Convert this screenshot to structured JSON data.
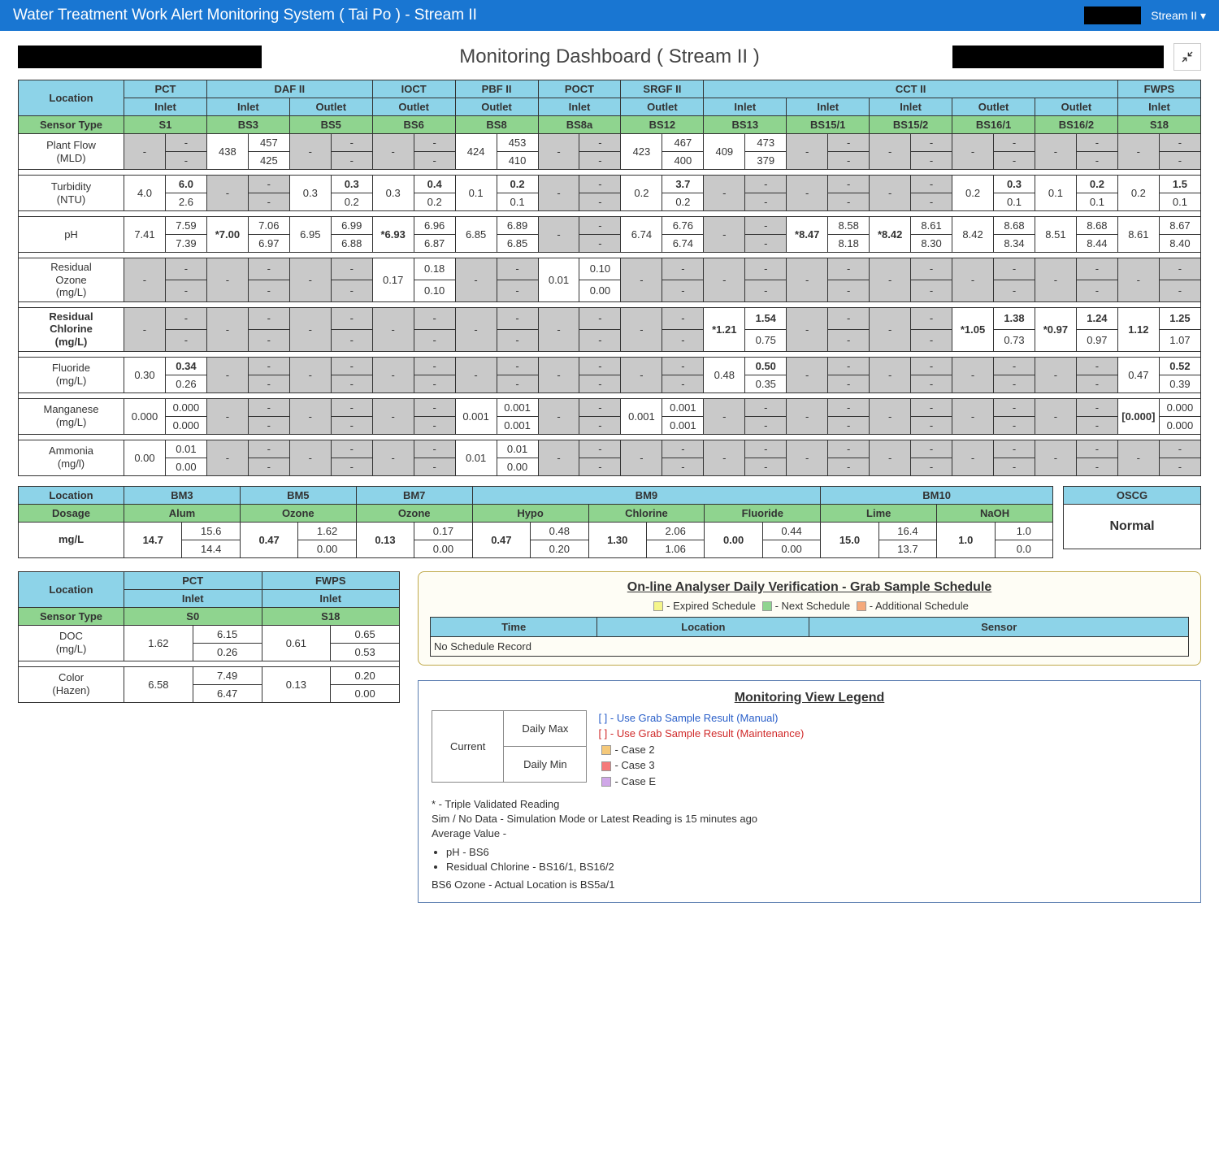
{
  "colors": {
    "header_bg": "#1976d2",
    "blue_cell": "#8dd3e8",
    "green_cell": "#8fd48f",
    "gray_cell": "#c9c9c9",
    "expired": "#f5f58a",
    "next": "#8fd48f",
    "additional": "#f5a97a",
    "case2": "#f5c97a",
    "case3": "#f57a7a",
    "caseE": "#d0a7e8"
  },
  "header": {
    "title": "Water Treatment Work Alert Monitoring System ( Tai Po ) - Stream II",
    "stream_dropdown": "Stream II ▾"
  },
  "dashboard_title": "Monitoring Dashboard ( Stream II )",
  "main": {
    "location_label": "Location",
    "sensor_type_label": "Sensor Type",
    "groups": [
      "PCT",
      "DAF II",
      "IOCT",
      "PBF II",
      "POCT",
      "SRGF II",
      "CCT II",
      "FWPS"
    ],
    "group_spans": [
      1,
      2,
      1,
      1,
      1,
      1,
      5,
      1
    ],
    "flows": [
      "Inlet",
      "Inlet",
      "Outlet",
      "Outlet",
      "Outlet",
      "Inlet",
      "Outlet",
      "Inlet",
      "Inlet",
      "Inlet",
      "Outlet",
      "Outlet",
      "Inlet"
    ],
    "sensors": [
      "S1",
      "BS3",
      "BS5",
      "BS6",
      "BS8",
      "BS8a",
      "BS12",
      "BS13",
      "BS15/1",
      "BS15/2",
      "BS16/1",
      "BS16/2",
      "S18"
    ],
    "rows": [
      {
        "label": "Plant Flow\n(MLD)",
        "bold": false,
        "cells": [
          {
            "cur": "-",
            "max": "-",
            "min": "-",
            "g": true
          },
          {
            "cur": "438",
            "max": "457",
            "min": "425"
          },
          {
            "cur": "-",
            "max": "-",
            "min": "-",
            "g": true
          },
          {
            "cur": "-",
            "max": "-",
            "min": "-",
            "g": true
          },
          {
            "cur": "424",
            "max": "453",
            "min": "410"
          },
          {
            "cur": "-",
            "max": "-",
            "min": "-",
            "g": true
          },
          {
            "cur": "423",
            "max": "467",
            "min": "400"
          },
          {
            "cur": "409",
            "max": "473",
            "min": "379"
          },
          {
            "cur": "-",
            "max": "-",
            "min": "-",
            "g": true
          },
          {
            "cur": "-",
            "max": "-",
            "min": "-",
            "g": true
          },
          {
            "cur": "-",
            "max": "-",
            "min": "-",
            "g": true
          },
          {
            "cur": "-",
            "max": "-",
            "min": "-",
            "g": true
          },
          {
            "cur": "-",
            "max": "-",
            "min": "-",
            "g": true
          }
        ]
      },
      {
        "label": "Turbidity\n(NTU)",
        "bold": false,
        "cells": [
          {
            "cur": "4.0",
            "max": "6.0",
            "min": "2.6",
            "maxb": true
          },
          {
            "cur": "-",
            "max": "-",
            "min": "-",
            "g": true
          },
          {
            "cur": "0.3",
            "max": "0.3",
            "min": "0.2",
            "maxb": true
          },
          {
            "cur": "0.3",
            "max": "0.4",
            "min": "0.2",
            "maxb": true
          },
          {
            "cur": "0.1",
            "max": "0.2",
            "min": "0.1",
            "maxb": true
          },
          {
            "cur": "-",
            "max": "-",
            "min": "-",
            "g": true
          },
          {
            "cur": "0.2",
            "max": "3.7",
            "min": "0.2",
            "maxb": true
          },
          {
            "cur": "-",
            "max": "-",
            "min": "-",
            "g": true
          },
          {
            "cur": "-",
            "max": "-",
            "min": "-",
            "g": true
          },
          {
            "cur": "-",
            "max": "-",
            "min": "-",
            "g": true
          },
          {
            "cur": "0.2",
            "max": "0.3",
            "min": "0.1",
            "maxb": true
          },
          {
            "cur": "0.1",
            "max": "0.2",
            "min": "0.1",
            "maxb": true
          },
          {
            "cur": "0.2",
            "max": "1.5",
            "min": "0.1",
            "maxb": true
          }
        ]
      },
      {
        "label": "pH",
        "bold": false,
        "cells": [
          {
            "cur": "7.41",
            "max": "7.59",
            "min": "7.39"
          },
          {
            "cur": "*7.00",
            "max": "7.06",
            "min": "6.97",
            "curb": true
          },
          {
            "cur": "6.95",
            "max": "6.99",
            "min": "6.88"
          },
          {
            "cur": "*6.93",
            "max": "6.96",
            "min": "6.87",
            "curb": true
          },
          {
            "cur": "6.85",
            "max": "6.89",
            "min": "6.85"
          },
          {
            "cur": "-",
            "max": "-",
            "min": "-",
            "g": true
          },
          {
            "cur": "6.74",
            "max": "6.76",
            "min": "6.74"
          },
          {
            "cur": "-",
            "max": "-",
            "min": "-",
            "g": true
          },
          {
            "cur": "*8.47",
            "max": "8.58",
            "min": "8.18",
            "curb": true
          },
          {
            "cur": "*8.42",
            "max": "8.61",
            "min": "8.30",
            "curb": true
          },
          {
            "cur": "8.42",
            "max": "8.68",
            "min": "8.34"
          },
          {
            "cur": "8.51",
            "max": "8.68",
            "min": "8.44"
          },
          {
            "cur": "8.61",
            "max": "8.67",
            "min": "8.40"
          }
        ]
      },
      {
        "label": "Residual\nOzone\n(mg/L)",
        "bold": false,
        "cells": [
          {
            "cur": "-",
            "max": "-",
            "min": "-",
            "g": true
          },
          {
            "cur": "-",
            "max": "-",
            "min": "-",
            "g": true
          },
          {
            "cur": "-",
            "max": "-",
            "min": "-",
            "g": true
          },
          {
            "cur": "0.17",
            "max": "0.18",
            "min": "0.10"
          },
          {
            "cur": "-",
            "max": "-",
            "min": "-",
            "g": true
          },
          {
            "cur": "0.01",
            "max": "0.10",
            "min": "0.00"
          },
          {
            "cur": "-",
            "max": "-",
            "min": "-",
            "g": true
          },
          {
            "cur": "-",
            "max": "-",
            "min": "-",
            "g": true
          },
          {
            "cur": "-",
            "max": "-",
            "min": "-",
            "g": true
          },
          {
            "cur": "-",
            "max": "-",
            "min": "-",
            "g": true
          },
          {
            "cur": "-",
            "max": "-",
            "min": "-",
            "g": true
          },
          {
            "cur": "-",
            "max": "-",
            "min": "-",
            "g": true
          },
          {
            "cur": "-",
            "max": "-",
            "min": "-",
            "g": true
          }
        ]
      },
      {
        "label": "Residual\nChlorine\n(mg/L)",
        "bold": true,
        "cells": [
          {
            "cur": "-",
            "max": "-",
            "min": "-",
            "g": true
          },
          {
            "cur": "-",
            "max": "-",
            "min": "-",
            "g": true
          },
          {
            "cur": "-",
            "max": "-",
            "min": "-",
            "g": true
          },
          {
            "cur": "-",
            "max": "-",
            "min": "-",
            "g": true
          },
          {
            "cur": "-",
            "max": "-",
            "min": "-",
            "g": true
          },
          {
            "cur": "-",
            "max": "-",
            "min": "-",
            "g": true
          },
          {
            "cur": "-",
            "max": "-",
            "min": "-",
            "g": true
          },
          {
            "cur": "*1.21",
            "max": "1.54",
            "min": "0.75",
            "curb": true,
            "maxb": true
          },
          {
            "cur": "-",
            "max": "-",
            "min": "-",
            "g": true
          },
          {
            "cur": "-",
            "max": "-",
            "min": "-",
            "g": true
          },
          {
            "cur": "*1.05",
            "max": "1.38",
            "min": "0.73",
            "curb": true,
            "maxb": true
          },
          {
            "cur": "*0.97",
            "max": "1.24",
            "min": "0.97",
            "curb": true,
            "maxb": true
          },
          {
            "cur": "1.12",
            "max": "1.25",
            "min": "1.07",
            "curb": true,
            "maxb": true
          }
        ]
      },
      {
        "label": "Fluoride\n(mg/L)",
        "bold": false,
        "cells": [
          {
            "cur": "0.30",
            "max": "0.34",
            "min": "0.26",
            "maxb": true
          },
          {
            "cur": "-",
            "max": "-",
            "min": "-",
            "g": true
          },
          {
            "cur": "-",
            "max": "-",
            "min": "-",
            "g": true
          },
          {
            "cur": "-",
            "max": "-",
            "min": "-",
            "g": true
          },
          {
            "cur": "-",
            "max": "-",
            "min": "-",
            "g": true
          },
          {
            "cur": "-",
            "max": "-",
            "min": "-",
            "g": true
          },
          {
            "cur": "-",
            "max": "-",
            "min": "-",
            "g": true
          },
          {
            "cur": "0.48",
            "max": "0.50",
            "min": "0.35",
            "maxb": true
          },
          {
            "cur": "-",
            "max": "-",
            "min": "-",
            "g": true
          },
          {
            "cur": "-",
            "max": "-",
            "min": "-",
            "g": true
          },
          {
            "cur": "-",
            "max": "-",
            "min": "-",
            "g": true
          },
          {
            "cur": "-",
            "max": "-",
            "min": "-",
            "g": true
          },
          {
            "cur": "0.47",
            "max": "0.52",
            "min": "0.39",
            "maxb": true
          }
        ]
      },
      {
        "label": "Manganese\n(mg/L)",
        "bold": false,
        "cells": [
          {
            "cur": "0.000",
            "max": "0.000",
            "min": "0.000"
          },
          {
            "cur": "-",
            "max": "-",
            "min": "-",
            "g": true
          },
          {
            "cur": "-",
            "max": "-",
            "min": "-",
            "g": true
          },
          {
            "cur": "-",
            "max": "-",
            "min": "-",
            "g": true
          },
          {
            "cur": "0.001",
            "max": "0.001",
            "min": "0.001"
          },
          {
            "cur": "-",
            "max": "-",
            "min": "-",
            "g": true
          },
          {
            "cur": "0.001",
            "max": "0.001",
            "min": "0.001"
          },
          {
            "cur": "-",
            "max": "-",
            "min": "-",
            "g": true
          },
          {
            "cur": "-",
            "max": "-",
            "min": "-",
            "g": true
          },
          {
            "cur": "-",
            "max": "-",
            "min": "-",
            "g": true
          },
          {
            "cur": "-",
            "max": "-",
            "min": "-",
            "g": true
          },
          {
            "cur": "-",
            "max": "-",
            "min": "-",
            "g": true
          },
          {
            "cur": "[0.000]",
            "max": "0.000",
            "min": "0.000",
            "curb": true
          }
        ]
      },
      {
        "label": "Ammonia\n(mg/l)",
        "bold": false,
        "cells": [
          {
            "cur": "0.00",
            "max": "0.01",
            "min": "0.00"
          },
          {
            "cur": "-",
            "max": "-",
            "min": "-",
            "g": true
          },
          {
            "cur": "-",
            "max": "-",
            "min": "-",
            "g": true
          },
          {
            "cur": "-",
            "max": "-",
            "min": "-",
            "g": true
          },
          {
            "cur": "0.01",
            "max": "0.01",
            "min": "0.00"
          },
          {
            "cur": "-",
            "max": "-",
            "min": "-",
            "g": true
          },
          {
            "cur": "-",
            "max": "-",
            "min": "-",
            "g": true
          },
          {
            "cur": "-",
            "max": "-",
            "min": "-",
            "g": true
          },
          {
            "cur": "-",
            "max": "-",
            "min": "-",
            "g": true
          },
          {
            "cur": "-",
            "max": "-",
            "min": "-",
            "g": true
          },
          {
            "cur": "-",
            "max": "-",
            "min": "-",
            "g": true
          },
          {
            "cur": "-",
            "max": "-",
            "min": "-",
            "g": true
          },
          {
            "cur": "-",
            "max": "-",
            "min": "-",
            "g": true
          }
        ]
      }
    ]
  },
  "dosage": {
    "location_label": "Location",
    "dosage_label": "Dosage",
    "unit_label": "mg/L",
    "locations": [
      "BM3",
      "BM5",
      "BM7",
      "BM9",
      "BM9",
      "BM9",
      "BM10",
      "BM10"
    ],
    "loc_groups": [
      "BM3",
      "BM5",
      "BM7",
      "BM9",
      "BM10"
    ],
    "loc_spans": [
      1,
      1,
      1,
      3,
      2
    ],
    "chemicals": [
      "Alum",
      "Ozone",
      "Ozone",
      "Hypo",
      "Chlorine",
      "Fluoride",
      "Lime",
      "NaOH"
    ],
    "cells": [
      {
        "cur": "14.7",
        "max": "15.6",
        "min": "14.4"
      },
      {
        "cur": "0.47",
        "max": "1.62",
        "min": "0.00"
      },
      {
        "cur": "0.13",
        "max": "0.17",
        "min": "0.00"
      },
      {
        "cur": "0.47",
        "max": "0.48",
        "min": "0.20"
      },
      {
        "cur": "1.30",
        "max": "2.06",
        "min": "1.06"
      },
      {
        "cur": "0.00",
        "max": "0.44",
        "min": "0.00"
      },
      {
        "cur": "15.0",
        "max": "16.4",
        "min": "13.7"
      },
      {
        "cur": "1.0",
        "max": "1.0",
        "min": "0.0"
      }
    ]
  },
  "oscg": {
    "label": "OSCG",
    "value": "Normal"
  },
  "small": {
    "location_label": "Location",
    "sensor_type_label": "Sensor Type",
    "groups": [
      "PCT",
      "FWPS"
    ],
    "flows": [
      "Inlet",
      "Inlet"
    ],
    "sensors": [
      "S0",
      "S18"
    ],
    "rows": [
      {
        "label": "DOC\n(mg/L)",
        "cells": [
          {
            "cur": "1.62",
            "max": "6.15",
            "min": "0.26"
          },
          {
            "cur": "0.61",
            "max": "0.65",
            "min": "0.53"
          }
        ]
      },
      {
        "label": "Color\n(Hazen)",
        "cells": [
          {
            "cur": "6.58",
            "max": "7.49",
            "min": "6.47"
          },
          {
            "cur": "0.13",
            "max": "0.20",
            "min": "0.00"
          }
        ]
      }
    ]
  },
  "schedule": {
    "title": "On-line Analyser Daily Verification - Grab Sample Schedule",
    "legend": [
      {
        "label": "- Expired Schedule",
        "color": "#f5f58a"
      },
      {
        "label": "- Next Schedule",
        "color": "#8fd48f"
      },
      {
        "label": "- Additional Schedule",
        "color": "#f5a97a"
      }
    ],
    "cols": [
      "Time",
      "Location",
      "Sensor"
    ],
    "empty": "No Schedule Record"
  },
  "legend": {
    "title": "Monitoring View Legend",
    "cells": {
      "current": "Current",
      "max": "Daily Max",
      "min": "Daily Min"
    },
    "items": [
      {
        "text": "[ ] - Use Grab Sample Result (Manual)",
        "color": "#2a5fc9"
      },
      {
        "text": "[ ] - Use Grab Sample Result (Maintenance)",
        "color": "#d02a2a"
      },
      {
        "text": "- Case 2",
        "swatch": "#f5c97a"
      },
      {
        "text": "- Case 3",
        "swatch": "#f57a7a"
      },
      {
        "text": "- Case E",
        "swatch": "#d0a7e8"
      }
    ],
    "notes": [
      "* - Triple Validated Reading",
      "Sim / No Data - Simulation Mode or Latest Reading is 15 minutes ago",
      "Average Value -"
    ],
    "bullets": [
      "pH - BS6",
      "Residual Chlorine - BS16/1, BS16/2"
    ],
    "note_end": "BS6 Ozone - Actual Location is BS5a/1"
  }
}
